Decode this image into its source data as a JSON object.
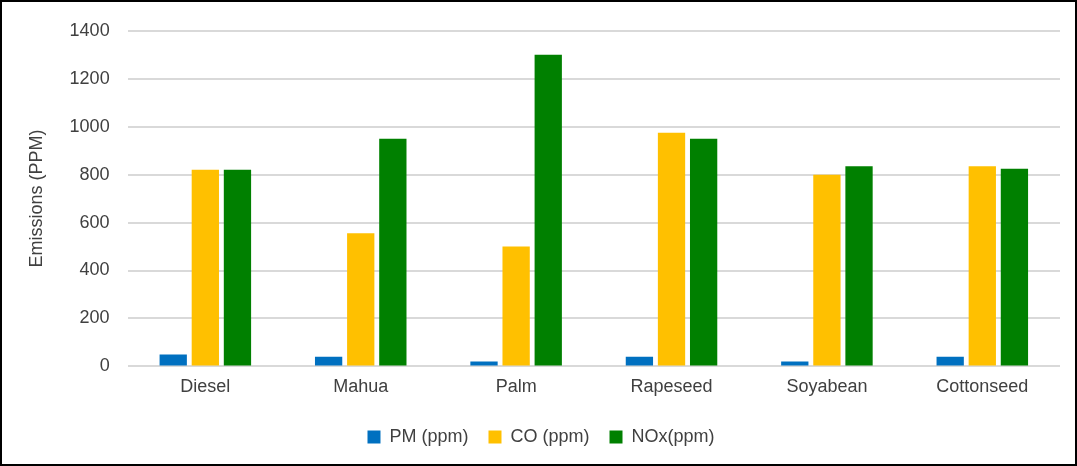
{
  "chart_data": {
    "type": "bar",
    "ylabel": "Emissions (PPM)",
    "categories": [
      "Diesel",
      "Mahua",
      "Palm",
      "Rapeseed",
      "Soyabean",
      "Cottonseed"
    ],
    "series": [
      {
        "name": "PM (ppm)",
        "color": "#0070c0",
        "values": [
          50,
          40,
          20,
          40,
          20,
          40
        ]
      },
      {
        "name": "CO (ppm)",
        "color": "#ffc000",
        "values": [
          820,
          555,
          500,
          975,
          800,
          835
        ]
      },
      {
        "name": "NOx(ppm)",
        "color": "#008000",
        "values": [
          820,
          950,
          1300,
          950,
          835,
          825
        ]
      }
    ],
    "ylim": [
      0,
      1400
    ],
    "yticks": [
      0,
      200,
      400,
      600,
      800,
      1000,
      1200,
      1400
    ],
    "grid": "y",
    "legend": "bottom"
  }
}
